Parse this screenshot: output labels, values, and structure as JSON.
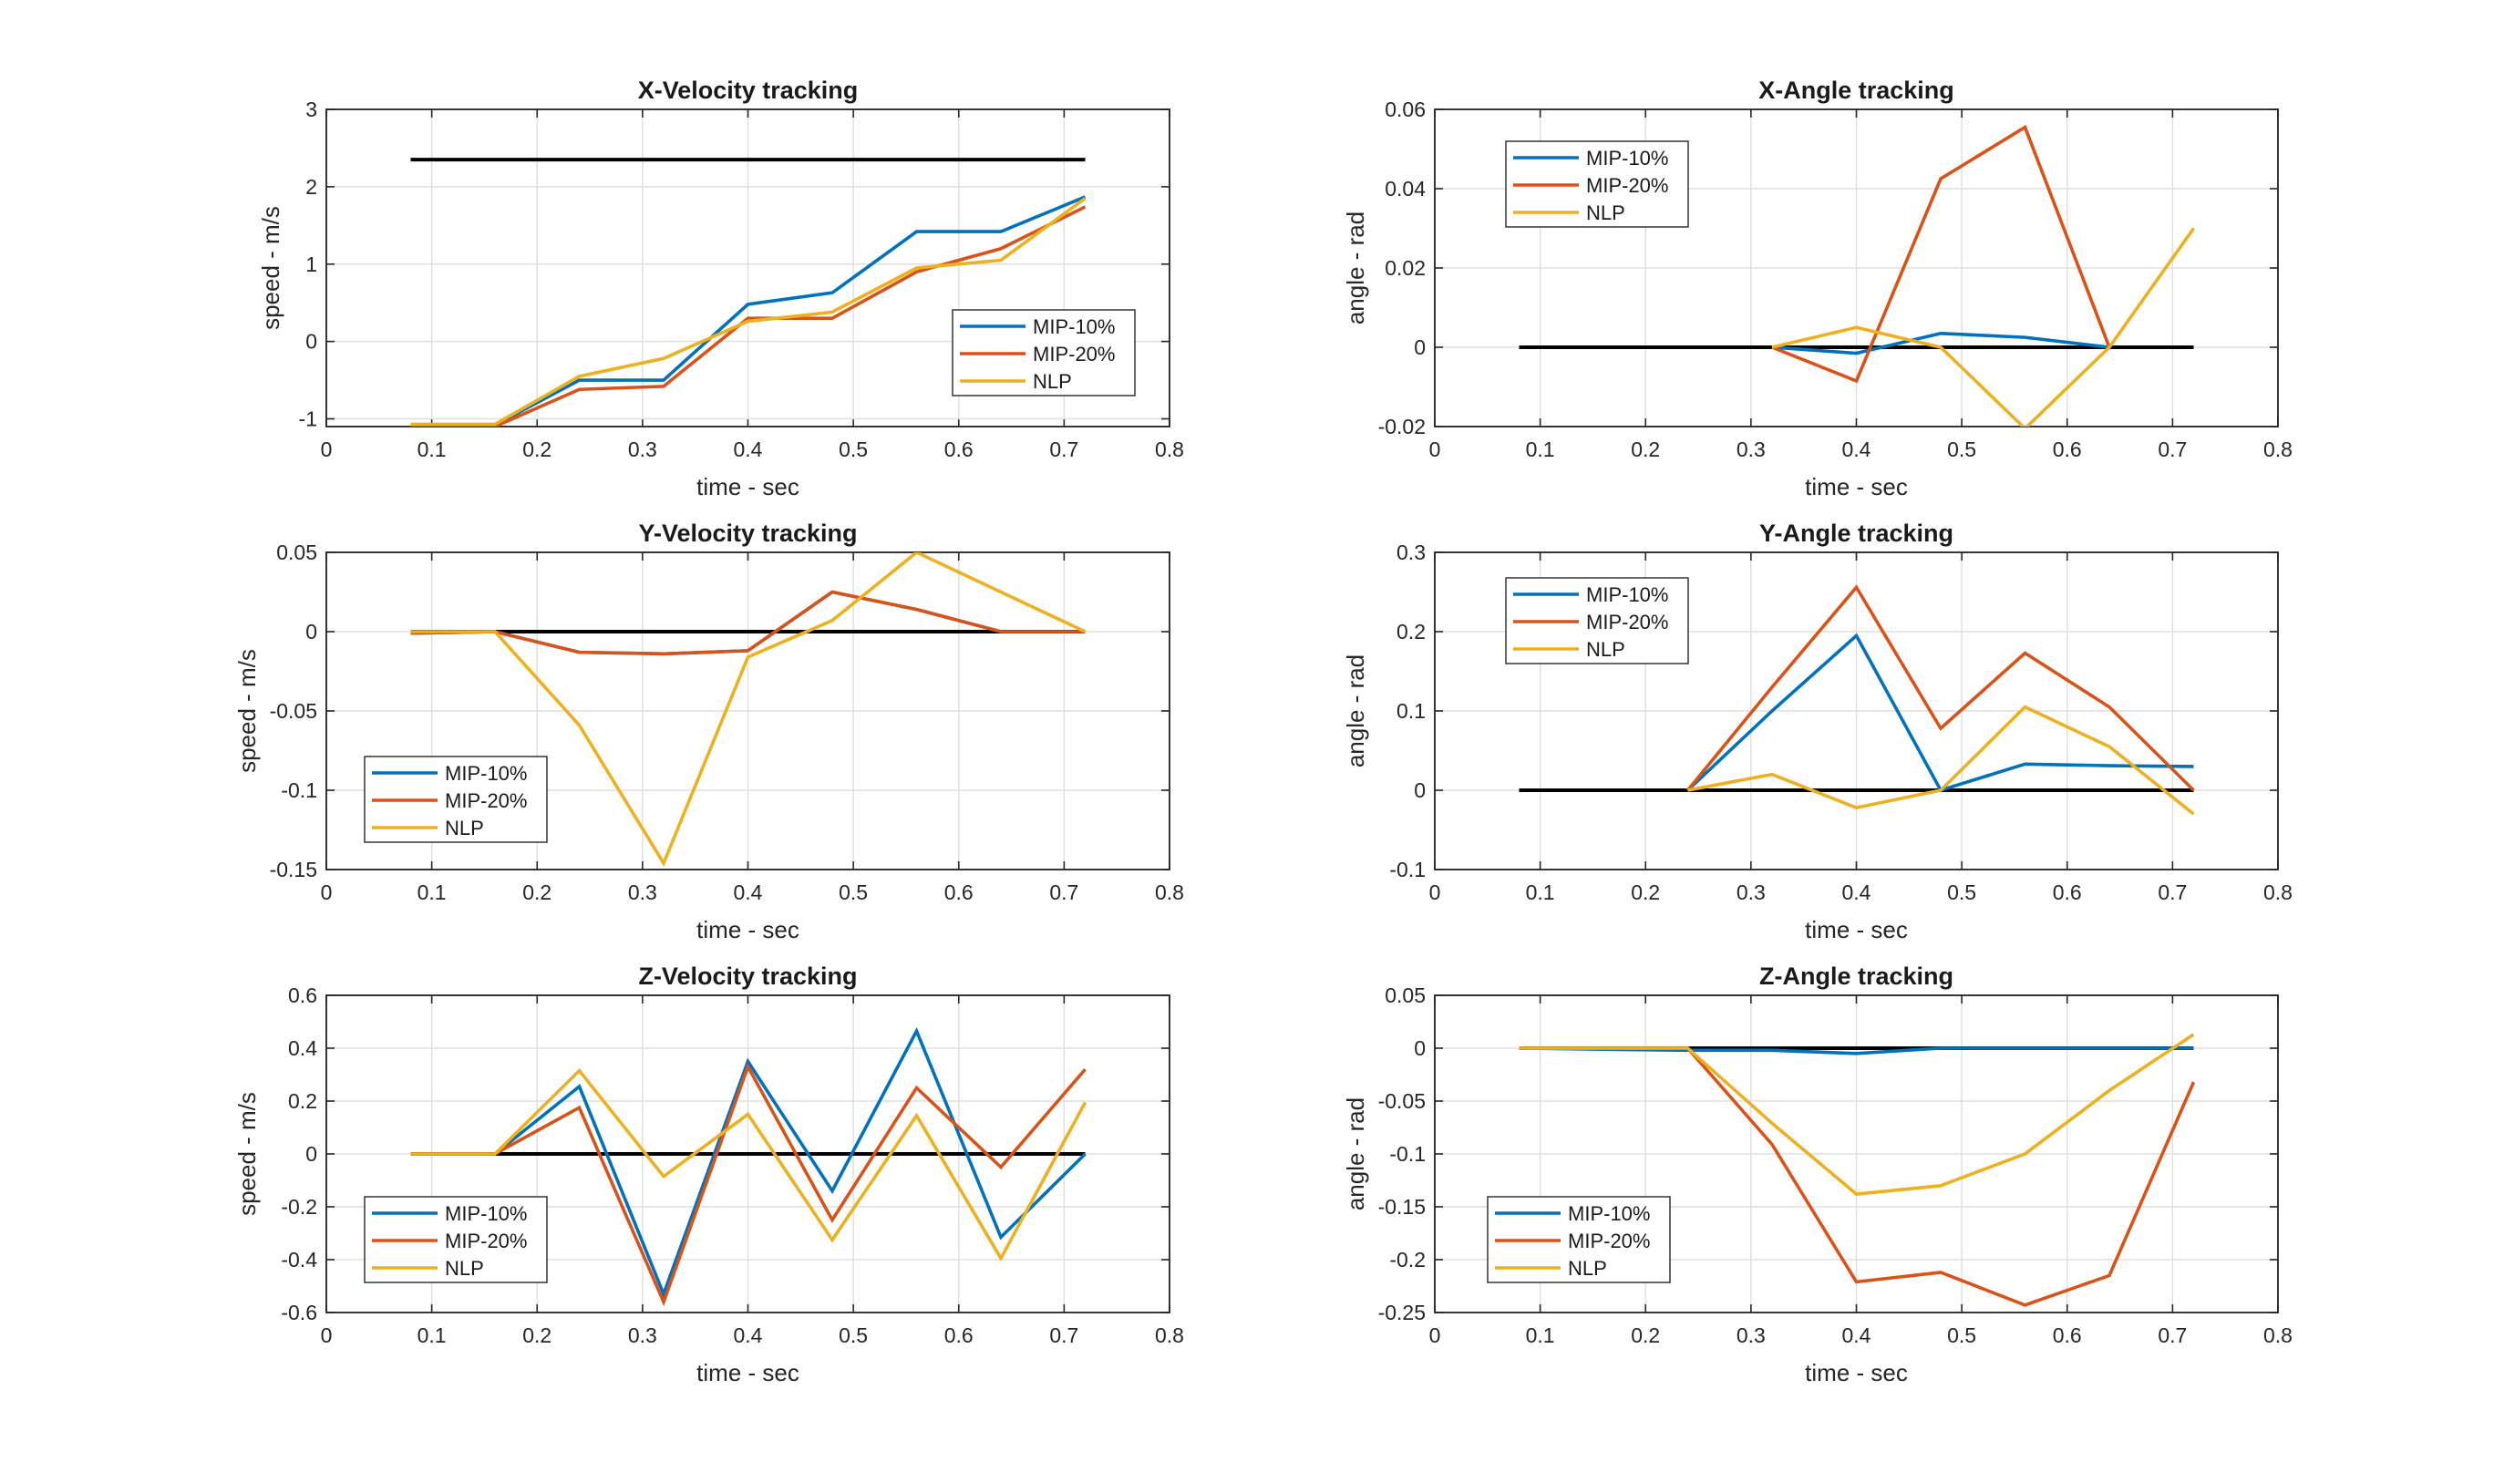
{
  "figure": {
    "xlabel": "time - sec",
    "legend": {
      "entries": [
        "MIP-10%",
        "MIP-20%",
        "NLP"
      ]
    },
    "colors": {
      "reference": "#000000",
      "MIP-10%": "#0072BD",
      "MIP-20%": "#D95319",
      "NLP": "#EDB120"
    }
  },
  "chart_data": [
    {
      "type": "line",
      "title": "X-Velocity tracking",
      "xlabel": "time - sec",
      "ylabel": "speed - m/s",
      "xlim": [
        0,
        0.8
      ],
      "ylim": [
        -1.1,
        3
      ],
      "xticks": [
        "0",
        "0.1",
        "0.2",
        "0.3",
        "0.4",
        "0.5",
        "0.6",
        "0.7",
        "0.8"
      ],
      "yticks": [
        "-1",
        "0",
        "1",
        "2",
        "3"
      ],
      "grid": true,
      "legend_position": "bottom-right",
      "x": [
        0.08,
        0.16,
        0.24,
        0.32,
        0.4,
        0.48,
        0.56,
        0.64,
        0.72
      ],
      "reference": {
        "x": [
          0.08,
          0.72
        ],
        "values": [
          2.35,
          2.35
        ]
      },
      "series": [
        {
          "name": "MIP-10%",
          "values": [
            -1.08,
            -1.08,
            -0.5,
            -0.5,
            0.48,
            0.63,
            1.42,
            1.42,
            1.87
          ]
        },
        {
          "name": "MIP-20%",
          "values": [
            -1.1,
            -1.1,
            -0.62,
            -0.58,
            0.3,
            0.3,
            0.9,
            1.2,
            1.74
          ]
        },
        {
          "name": "NLP",
          "values": [
            -1.07,
            -1.07,
            -0.45,
            -0.22,
            0.26,
            0.38,
            0.95,
            1.05,
            1.85
          ]
        }
      ]
    },
    {
      "type": "line",
      "title": "X-Angle tracking",
      "xlabel": "time - sec",
      "ylabel": "angle - rad",
      "xlim": [
        0,
        0.8
      ],
      "ylim": [
        -0.02,
        0.06
      ],
      "xticks": [
        "0",
        "0.1",
        "0.2",
        "0.3",
        "0.4",
        "0.5",
        "0.6",
        "0.7",
        "0.8"
      ],
      "yticks": [
        "-0.02",
        "0",
        "0.02",
        "0.04",
        "0.06"
      ],
      "grid": true,
      "legend_position": "top-left",
      "x": [
        0.32,
        0.4,
        0.48,
        0.56,
        0.64,
        0.72
      ],
      "reference": {
        "x": [
          0.08,
          0.72
        ],
        "values": [
          0,
          0
        ]
      },
      "series": [
        {
          "name": "MIP-10%",
          "values": [
            0,
            -0.0015,
            0.0035,
            0.0025,
            0,
            null
          ]
        },
        {
          "name": "MIP-20%",
          "values": [
            0,
            -0.0085,
            0.0425,
            0.0555,
            0,
            null
          ]
        },
        {
          "name": "NLP",
          "values": [
            0,
            0.005,
            0,
            -0.0205,
            0,
            0.03
          ]
        }
      ]
    },
    {
      "type": "line",
      "title": "Y-Velocity tracking",
      "xlabel": "time - sec",
      "ylabel": "speed - m/s",
      "xlim": [
        0,
        0.8
      ],
      "ylim": [
        -0.15,
        0.05
      ],
      "xticks": [
        "0",
        "0.1",
        "0.2",
        "0.3",
        "0.4",
        "0.5",
        "0.6",
        "0.7",
        "0.8"
      ],
      "yticks": [
        "-0.15",
        "-0.1",
        "-0.05",
        "0",
        "0.05"
      ],
      "grid": true,
      "legend_position": "bottom-left",
      "x": [
        0.08,
        0.16,
        0.24,
        0.32,
        0.4,
        0.48,
        0.56,
        0.64,
        0.72
      ],
      "reference": {
        "x": [
          0.08,
          0.72
        ],
        "values": [
          0,
          0
        ]
      },
      "series": [
        {
          "name": "MIP-10%",
          "values": [
            -0.001,
            0,
            -0.013,
            -0.014,
            -0.012,
            0.025,
            0.014,
            0,
            0
          ]
        },
        {
          "name": "MIP-20%",
          "values": [
            -0.001,
            0,
            -0.013,
            -0.014,
            -0.012,
            0.025,
            0.014,
            0,
            0
          ]
        },
        {
          "name": "NLP",
          "values": [
            0,
            0,
            -0.059,
            -0.146,
            -0.016,
            0.007,
            0.05,
            0.025,
            0
          ]
        }
      ]
    },
    {
      "type": "line",
      "title": "Y-Angle tracking",
      "xlabel": "time - sec",
      "ylabel": "angle - rad",
      "xlim": [
        0,
        0.8
      ],
      "ylim": [
        -0.1,
        0.3
      ],
      "xticks": [
        "0",
        "0.1",
        "0.2",
        "0.3",
        "0.4",
        "0.5",
        "0.6",
        "0.7",
        "0.8"
      ],
      "yticks": [
        "-0.1",
        "0",
        "0.1",
        "0.2",
        "0.3"
      ],
      "grid": true,
      "legend_position": "top-left",
      "x": [
        0.24,
        0.32,
        0.4,
        0.48,
        0.56,
        0.64,
        0.72
      ],
      "reference": {
        "x": [
          0.08,
          0.72
        ],
        "values": [
          0,
          0
        ]
      },
      "series": [
        {
          "name": "MIP-10%",
          "values": [
            0,
            0.1,
            0.195,
            0,
            0.033,
            0.031,
            0.03
          ]
        },
        {
          "name": "MIP-20%",
          "values": [
            0,
            0.13,
            0.256,
            0.078,
            0.173,
            0.105,
            0
          ]
        },
        {
          "name": "NLP",
          "values": [
            0,
            0.02,
            -0.022,
            0,
            0.105,
            0.055,
            -0.03
          ]
        }
      ]
    },
    {
      "type": "line",
      "title": "Z-Velocity tracking",
      "xlabel": "time - sec",
      "ylabel": "speed - m/s",
      "xlim": [
        0,
        0.8
      ],
      "ylim": [
        -0.6,
        0.6
      ],
      "xticks": [
        "0",
        "0.1",
        "0.2",
        "0.3",
        "0.4",
        "0.5",
        "0.6",
        "0.7",
        "0.8"
      ],
      "yticks": [
        "-0.6",
        "-0.4",
        "-0.2",
        "0",
        "0.2",
        "0.4",
        "0.6"
      ],
      "grid": true,
      "legend_position": "bottom-left",
      "x": [
        0.08,
        0.16,
        0.24,
        0.32,
        0.4,
        0.48,
        0.56,
        0.64,
        0.72
      ],
      "reference": {
        "x": [
          0.08,
          0.72
        ],
        "values": [
          0,
          0
        ]
      },
      "series": [
        {
          "name": "MIP-10%",
          "values": [
            0,
            0,
            0.255,
            -0.53,
            0.35,
            -0.14,
            0.465,
            -0.315,
            0
          ]
        },
        {
          "name": "MIP-20%",
          "values": [
            0,
            0,
            0.175,
            -0.56,
            0.33,
            -0.25,
            0.25,
            -0.05,
            0.32
          ]
        },
        {
          "name": "NLP",
          "values": [
            0,
            0,
            0.315,
            -0.085,
            0.15,
            -0.325,
            0.145,
            -0.395,
            0.195
          ]
        }
      ]
    },
    {
      "type": "line",
      "title": "Z-Angle tracking",
      "xlabel": "time - sec",
      "ylabel": "angle - rad",
      "xlim": [
        0,
        0.8
      ],
      "ylim": [
        -0.25,
        0.05
      ],
      "xticks": [
        "0",
        "0.1",
        "0.2",
        "0.3",
        "0.4",
        "0.5",
        "0.6",
        "0.7",
        "0.8"
      ],
      "yticks": [
        "-0.25",
        "-0.2",
        "-0.15",
        "-0.1",
        "-0.05",
        "0",
        "0.05"
      ],
      "grid": true,
      "legend_position": "bottom-left",
      "x": [
        0.08,
        0.16,
        0.24,
        0.32,
        0.4,
        0.48,
        0.56,
        0.64,
        0.72
      ],
      "reference": {
        "x": [
          0.08,
          0.72
        ],
        "values": [
          0,
          0
        ]
      },
      "series": [
        {
          "name": "MIP-10%",
          "values": [
            0,
            -0.001,
            -0.002,
            -0.002,
            -0.005,
            0,
            0,
            0,
            0
          ]
        },
        {
          "name": "MIP-20%",
          "values": [
            0,
            0,
            0,
            -0.091,
            -0.221,
            -0.212,
            -0.243,
            -0.215,
            -0.032
          ]
        },
        {
          "name": "NLP",
          "values": [
            0,
            0,
            0,
            -0.071,
            -0.138,
            -0.13,
            -0.1,
            -0.04,
            0.013
          ]
        }
      ]
    }
  ]
}
